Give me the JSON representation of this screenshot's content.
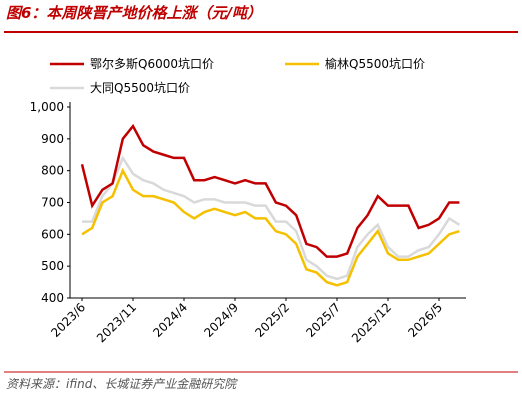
{
  "chart_data": {
    "type": "line",
    "title": "图6：本周陕晋产地价格上涨（元/吨）",
    "source": "资料来源：ifind、长城证券产业金融研究院",
    "categories": [
      "2023/6",
      null,
      null,
      null,
      null,
      "2023/11",
      null,
      null,
      null,
      null,
      "2024/4",
      null,
      null,
      null,
      null,
      "2024/9",
      null,
      null,
      null,
      null,
      "2025/2",
      null,
      null,
      null,
      null,
      "2025/7",
      null,
      null,
      null,
      null,
      "2025/12",
      null,
      null,
      null,
      null,
      "2026/5",
      null,
      null
    ],
    "series": [
      {
        "name": "鄂尔多斯Q6000坑口价",
        "color": "#c00000",
        "values": [
          820,
          690,
          740,
          760,
          900,
          940,
          880,
          860,
          850,
          840,
          840,
          770,
          770,
          780,
          770,
          760,
          770,
          760,
          760,
          700,
          690,
          660,
          570,
          560,
          530,
          530,
          540,
          620,
          660,
          720,
          690,
          690,
          690,
          620,
          630,
          650,
          700,
          700
        ]
      },
      {
        "name": "榆林Q5500坑口价",
        "color": "#f5c000",
        "values": [
          600,
          620,
          700,
          720,
          800,
          740,
          720,
          720,
          710,
          700,
          670,
          650,
          670,
          680,
          670,
          660,
          670,
          650,
          650,
          610,
          600,
          570,
          490,
          480,
          450,
          440,
          450,
          530,
          570,
          610,
          540,
          520,
          520,
          530,
          540,
          570,
          600,
          610
        ]
      },
      {
        "name": "大同Q5500坑口价",
        "color": "#d9d9d9",
        "values": [
          640,
          640,
          720,
          760,
          840,
          790,
          770,
          760,
          740,
          730,
          720,
          700,
          710,
          710,
          700,
          700,
          700,
          690,
          690,
          640,
          640,
          610,
          520,
          500,
          470,
          460,
          470,
          560,
          600,
          630,
          560,
          530,
          530,
          550,
          560,
          600,
          650,
          630
        ]
      }
    ],
    "ylim": [
      400,
      1000
    ],
    "yticks": [
      400,
      500,
      600,
      700,
      800,
      900,
      {
        "value": 1000,
        "label": "1,000"
      }
    ]
  }
}
